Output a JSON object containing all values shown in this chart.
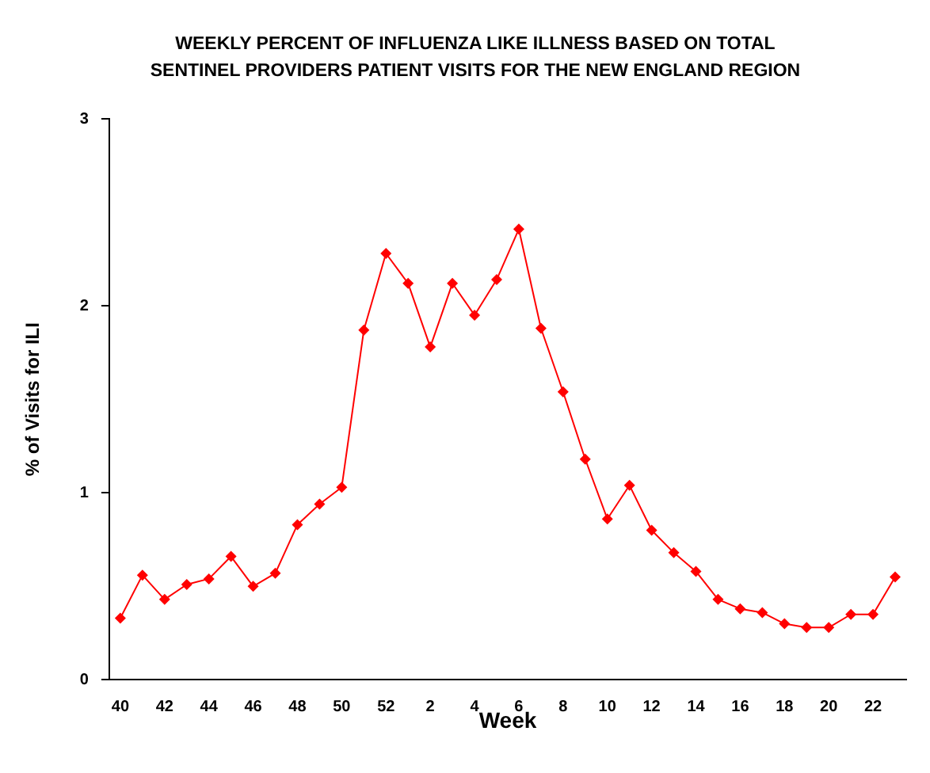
{
  "chart_data": {
    "type": "line",
    "title": "WEEKLY PERCENT OF INFLUENZA LIKE ILLNESS BASED ON TOTAL SENTINEL PROVIDERS PATIENT VISITS FOR THE NEW ENGLAND  REGION",
    "xlabel": "Week",
    "ylabel": "% of Visits for ILI",
    "categories": [
      "40",
      null,
      "42",
      null,
      "44",
      null,
      "46",
      null,
      "48",
      null,
      "50",
      null,
      "52",
      null,
      "2",
      null,
      "4",
      null,
      "6",
      null,
      "8",
      null,
      "10",
      null,
      "12",
      null,
      "14",
      null,
      "16",
      null,
      "18",
      null,
      "20",
      null,
      "22",
      null
    ],
    "series": [
      {
        "color": "#ff0000",
        "values": [
          0.33,
          0.56,
          0.43,
          0.51,
          0.54,
          0.66,
          0.5,
          0.57,
          0.83,
          0.94,
          1.03,
          1.87,
          2.28,
          2.12,
          1.78,
          2.12,
          1.95,
          2.14,
          2.41,
          1.88,
          1.54,
          1.18,
          0.86,
          1.04,
          0.8,
          0.68,
          0.58,
          0.43,
          0.38,
          0.36,
          0.3,
          0.28,
          0.28,
          0.35,
          0.35,
          0.55
        ]
      }
    ],
    "ylim": [
      0,
      3
    ],
    "yticks": [
      0,
      1,
      2,
      3
    ],
    "grid": false,
    "legend": false,
    "marker": "diamond",
    "line_style": "solid"
  }
}
